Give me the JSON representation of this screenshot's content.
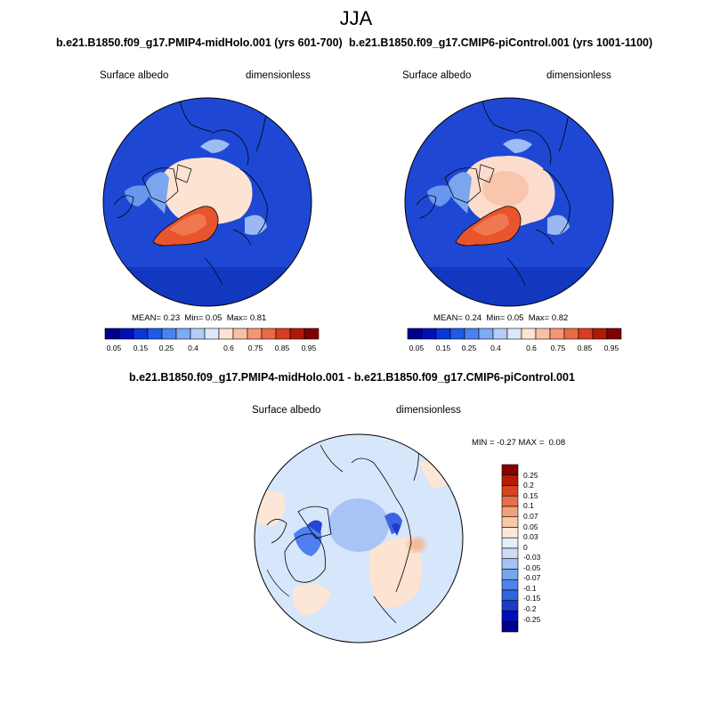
{
  "figure": {
    "season": "JJA"
  },
  "colors": {
    "abs_scale": [
      "#00008c",
      "#0010b8",
      "#0a35d8",
      "#1e5ae8",
      "#4a82f0",
      "#7faaf4",
      "#b4ccf8",
      "#dde8fa",
      "#fde3d4",
      "#f9c0a4",
      "#f49674",
      "#ea6a48",
      "#d83d24",
      "#b01806",
      "#7e0000"
    ],
    "diff_scale": [
      "#00008c",
      "#0010b8",
      "#1a3ccc",
      "#3266dd",
      "#4e84ea",
      "#7aa4f0",
      "#a4c2f5",
      "#cbdcf8",
      "#e4eefc",
      "#fce8d8",
      "#f8c8a8",
      "#f2a078",
      "#e87048",
      "#d54420",
      "#b81a05",
      "#8a0000"
    ]
  },
  "panels": [
    {
      "title": "b.e21.B1850.f09_g17.PMIP4-midHolo.001 (yrs 601-700)",
      "variable": "Surface albedo",
      "units": "dimensionless",
      "stats": {
        "mean_label": "MEAN=",
        "mean": "0.23",
        "min_label": "Min=",
        "min": "0.05",
        "max_label": "Max=",
        "max": "0.81"
      },
      "colorbar_ticks": [
        "0.05",
        "0.15",
        "0.25",
        "0.4",
        "0.6",
        "0.75",
        "0.85",
        "0.95"
      ]
    },
    {
      "title": "b.e21.B1850.f09_g17.CMIP6-piControl.001 (yrs 1001-1100)",
      "variable": "Surface albedo",
      "units": "dimensionless",
      "stats": {
        "mean_label": "MEAN=",
        "mean": "0.24",
        "min_label": "Min=",
        "min": "0.05",
        "max_label": "Max=",
        "max": "0.82"
      },
      "colorbar_ticks": [
        "0.05",
        "0.15",
        "0.25",
        "0.4",
        "0.6",
        "0.75",
        "0.85",
        "0.95"
      ]
    }
  ],
  "diff_panel": {
    "title": "b.e21.B1850.f09_g17.PMIP4-midHolo.001 - b.e21.B1850.f09_g17.CMIP6-piControl.001",
    "variable": "Surface albedo",
    "units": "dimensionless",
    "stats": {
      "min_label": "MIN =",
      "min": "-0.27",
      "max_label": "MAX =",
      "max": "0.08"
    },
    "colorbar_ticks": [
      "0.25",
      "0.2",
      "0.15",
      "0.1",
      "0.07",
      "0.05",
      "0.03",
      "0",
      "-0.03",
      "-0.05",
      "-0.07",
      "-0.1",
      "-0.15",
      "-0.2",
      "-0.25"
    ]
  }
}
